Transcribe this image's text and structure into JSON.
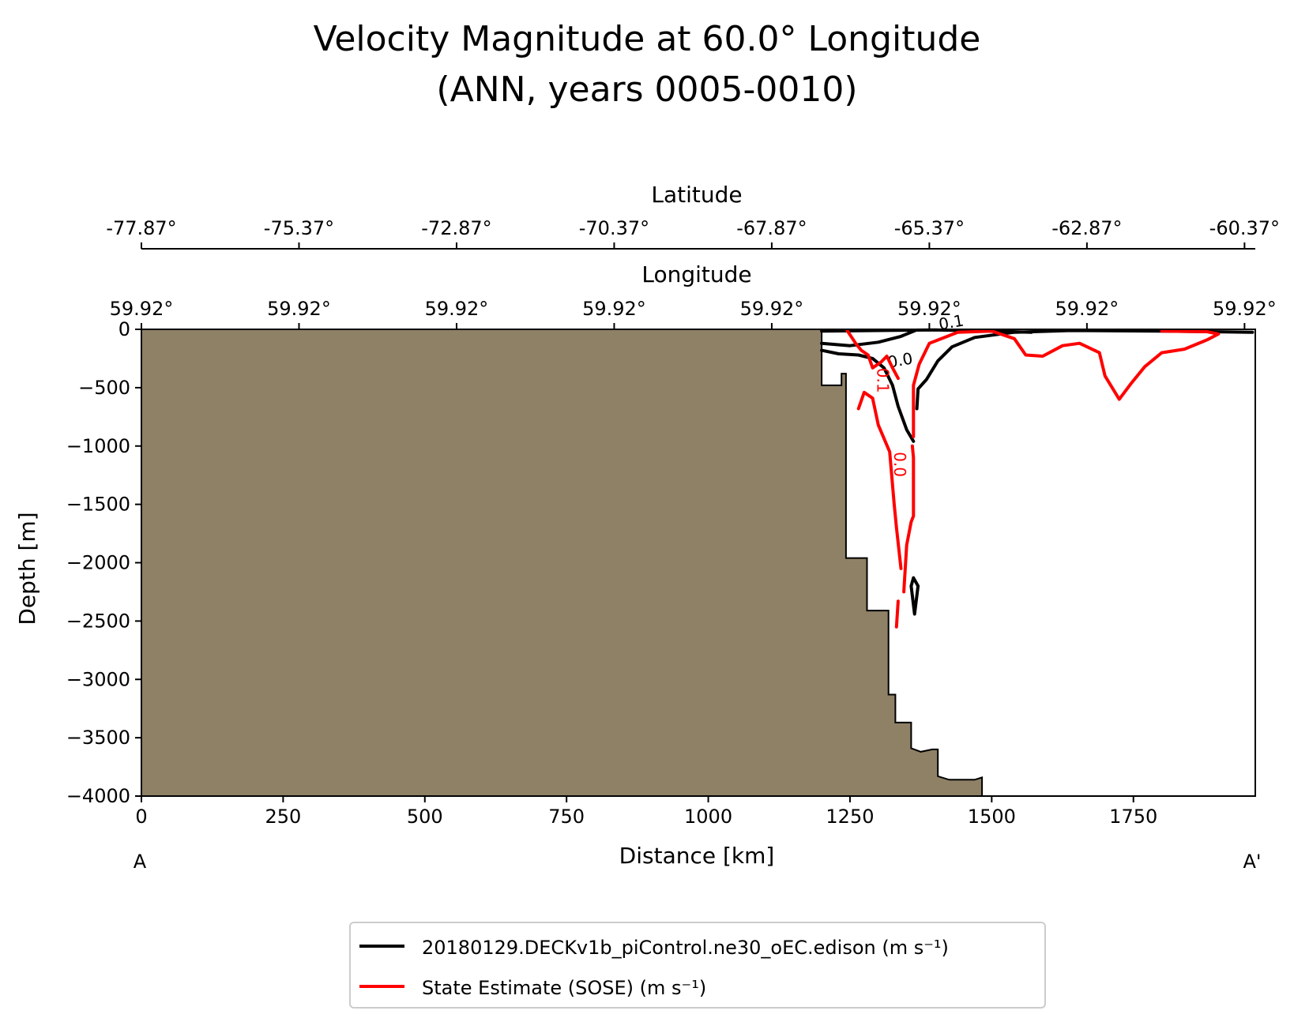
{
  "chart_data": {
    "type": "line",
    "title_line1": "Velocity Magnitude at 60.0° Longitude",
    "title_line2": "(ANN, years 0005-0010)",
    "xlabel": "Distance [km]",
    "ylabel": "Depth [m]",
    "xlim": [
      0,
      1965
    ],
    "ylim": [
      -4000,
      0
    ],
    "x_ticks": [
      0,
      250,
      500,
      750,
      1000,
      1250,
      1500,
      1750
    ],
    "x_tick_labels": [
      "0",
      "250",
      "500",
      "750",
      "1000",
      "1250",
      "1500",
      "1750"
    ],
    "y_ticks": [
      0,
      -500,
      -1000,
      -1500,
      -2000,
      -2500,
      -3000,
      -3500,
      -4000
    ],
    "y_tick_labels": [
      "0",
      "−500",
      "−1000",
      "−1500",
      "−2000",
      "−2500",
      "−3000",
      "−3500",
      "−4000"
    ],
    "section_start_label": "A",
    "section_end_label": "A'",
    "latitude_axis": {
      "label": "Latitude",
      "ticks": [
        0,
        278,
        556,
        834,
        1112,
        1390,
        1668,
        1946
      ],
      "tick_labels": [
        "-77.87°",
        "-75.37°",
        "-72.87°",
        "-70.37°",
        "-67.87°",
        "-65.37°",
        "-62.87°",
        "-60.37°"
      ]
    },
    "longitude_axis": {
      "label": "Longitude",
      "ticks": [
        0,
        278,
        556,
        834,
        1112,
        1390,
        1668,
        1946
      ],
      "tick_labels": [
        "59.92°",
        "59.92°",
        "59.92°",
        "59.92°",
        "59.92°",
        "59.92°",
        "59.92°",
        "59.92°"
      ]
    },
    "land_color": "#8f8166",
    "bathymetry": [
      [
        0,
        0
      ],
      [
        1200,
        0
      ],
      [
        1200,
        -480
      ],
      [
        1235,
        -480
      ],
      [
        1235,
        -380
      ],
      [
        1243,
        -380
      ],
      [
        1243,
        -1960
      ],
      [
        1280,
        -1960
      ],
      [
        1280,
        -2410
      ],
      [
        1318,
        -2410
      ],
      [
        1318,
        -3130
      ],
      [
        1330,
        -3130
      ],
      [
        1330,
        -3370
      ],
      [
        1358,
        -3370
      ],
      [
        1358,
        -3590
      ],
      [
        1375,
        -3620
      ],
      [
        1395,
        -3600
      ],
      [
        1405,
        -3600
      ],
      [
        1405,
        -3830
      ],
      [
        1425,
        -3860
      ],
      [
        1470,
        -3860
      ],
      [
        1483,
        -3840
      ],
      [
        1483,
        -4000
      ],
      [
        0,
        -4000
      ]
    ],
    "series": [
      {
        "name": "20180129.DECKv1b_piControl.ne30_oEC.edison (m s⁻¹)",
        "color": "#000000",
        "contours": [
          {
            "level_label": "0.1",
            "points": [
              [
                1200,
                -15
              ],
              [
                1300,
                -10
              ],
              [
                1400,
                -5
              ],
              [
                1500,
                -15
              ],
              [
                1570,
                -25
              ]
            ]
          },
          {
            "level_label": "0.0",
            "points": [
              [
                1200,
                -180
              ],
              [
                1230,
                -210
              ],
              [
                1265,
                -220
              ],
              [
                1290,
                -250
              ],
              [
                1310,
                -330
              ],
              [
                1325,
                -480
              ],
              [
                1335,
                -660
              ],
              [
                1350,
                -860
              ],
              [
                1362,
                -960
              ]
            ]
          },
          {
            "level_label": "",
            "points": [
              [
                1200,
                -120
              ],
              [
                1250,
                -140
              ],
              [
                1300,
                -110
              ],
              [
                1340,
                -60
              ],
              [
                1365,
                -10
              ]
            ]
          },
          {
            "level_label": "",
            "points": [
              [
                1368,
                -680
              ],
              [
                1370,
                -510
              ],
              [
                1385,
                -430
              ],
              [
                1405,
                -270
              ],
              [
                1430,
                -150
              ],
              [
                1470,
                -70
              ],
              [
                1540,
                -25
              ],
              [
                1640,
                -10
              ],
              [
                1800,
                -15
              ],
              [
                1960,
                -25
              ]
            ]
          },
          {
            "level_label": "",
            "points": [
              [
                1362,
                -2130
              ],
              [
                1370,
                -2200
              ],
              [
                1364,
                -2440
              ],
              [
                1358,
                -2200
              ],
              [
                1362,
                -2130
              ]
            ]
          }
        ]
      },
      {
        "name": "State Estimate (SOSE) (m s⁻¹)",
        "color": "#ff0000",
        "contours": [
          {
            "level_label": "0.1",
            "points": [
              [
                1245,
                -10
              ],
              [
                1260,
                -120
              ],
              [
                1270,
                -180
              ],
              [
                1282,
                -220
              ],
              [
                1290,
                -330
              ],
              [
                1305,
                -280
              ],
              [
                1315,
                -230
              ],
              [
                1325,
                -330
              ],
              [
                1335,
                -420
              ]
            ]
          },
          {
            "level_label": "0.0",
            "points": [
              [
                1265,
                -680
              ],
              [
                1275,
                -540
              ],
              [
                1290,
                -590
              ],
              [
                1300,
                -820
              ],
              [
                1320,
                -1050
              ],
              [
                1328,
                -1500
              ],
              [
                1332,
                -1700
              ],
              [
                1340,
                -2050
              ]
            ]
          },
          {
            "level_label": "",
            "points": [
              [
                1335,
                -2330
              ],
              [
                1332,
                -2550
              ]
            ]
          },
          {
            "level_label": "",
            "points": [
              [
                1360,
                -1000
              ],
              [
                1362,
                -1100
              ],
              [
                1362,
                -1600
              ],
              [
                1358,
                -1650
              ],
              [
                1350,
                -1850
              ],
              [
                1345,
                -2250
              ]
            ]
          },
          {
            "level_label": "",
            "points": [
              [
                1362,
                -920
              ],
              [
                1362,
                -630
              ],
              [
                1362,
                -480
              ],
              [
                1372,
                -300
              ],
              [
                1390,
                -120
              ],
              [
                1440,
                -25
              ],
              [
                1500,
                -15
              ],
              [
                1540,
                -80
              ],
              [
                1560,
                -220
              ],
              [
                1590,
                -230
              ],
              [
                1625,
                -140
              ],
              [
                1655,
                -120
              ],
              [
                1690,
                -200
              ],
              [
                1700,
                -400
              ],
              [
                1725,
                -600
              ],
              [
                1745,
                -470
              ],
              [
                1770,
                -320
              ],
              [
                1800,
                -200
              ],
              [
                1840,
                -170
              ],
              [
                1880,
                -90
              ],
              [
                1900,
                -40
              ],
              [
                1880,
                -20
              ],
              [
                1800,
                -15
              ]
            ]
          }
        ]
      }
    ]
  },
  "legend": {
    "entries": [
      {
        "label": "20180129.DECKv1b_piControl.ne30_oEC.edison (m s⁻¹)",
        "color": "#000000"
      },
      {
        "label": "State Estimate (SOSE) (m s⁻¹)",
        "color": "#ff0000"
      }
    ]
  }
}
